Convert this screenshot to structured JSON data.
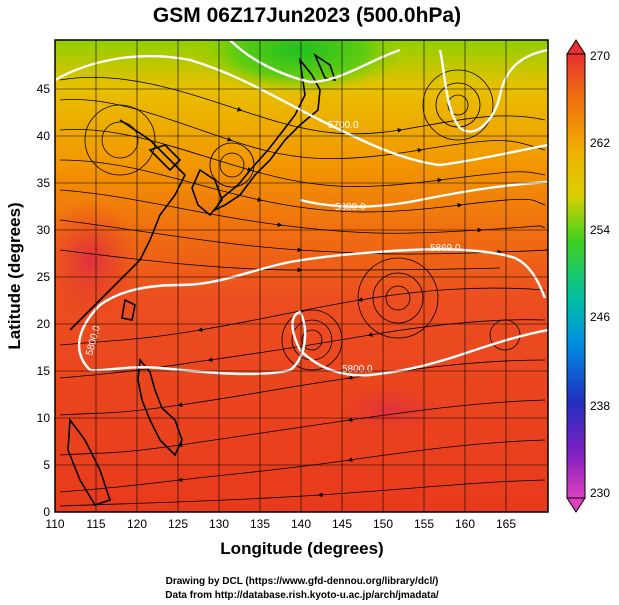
{
  "title": "GSM 06Z17Jun2023 (500.0hPa)",
  "xlabel": "Longitude (degrees)",
  "ylabel": "Latitude  (degrees)",
  "x_ticks": [
    "110",
    "115",
    "120",
    "125",
    "130",
    "135",
    "140",
    "145",
    "150",
    "155",
    "160",
    "165"
  ],
  "y_ticks": [
    "0",
    "5",
    "10",
    "15",
    "20",
    "25",
    "30",
    "35",
    "40",
    "45"
  ],
  "colorbar": {
    "ticks": [
      "270",
      "262",
      "254",
      "246",
      "238",
      "230"
    ],
    "min": 230,
    "max": 270
  },
  "contour_labels": [
    "5700.0",
    "5800.0",
    "5869.0",
    "5800.0",
    "5800.0"
  ],
  "credits": {
    "line1": "Drawing by DCL (https://www.gfd-dennou.org/library/dcl/)",
    "line2": "Data from http://database.rish.kyoto-u.ac.jp/arch/jmadata/"
  },
  "map_data": {
    "extent": {
      "lon": [
        110,
        170
      ],
      "lat": [
        0,
        50
      ]
    },
    "field": "temperature (K) shaded, streamlines, geopotential height contours (m)",
    "contours_m": [
      5700,
      5800,
      5869
    ],
    "colors": {
      "cold": "#e040c0",
      "mid": "#20c000",
      "warm": "#e02020"
    }
  }
}
